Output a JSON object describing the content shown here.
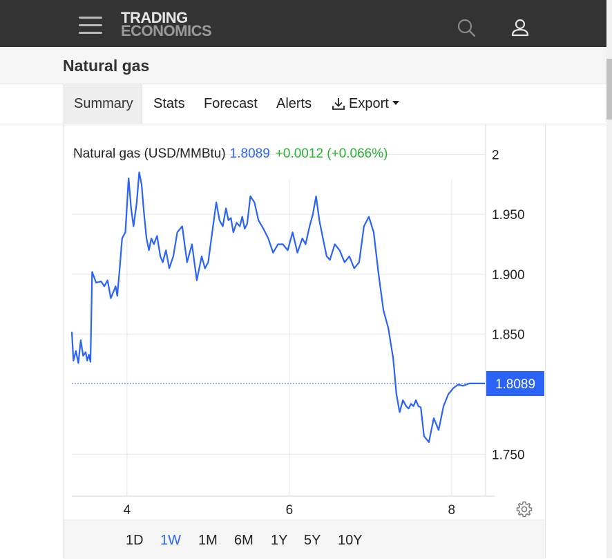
{
  "header": {
    "logo_line1": "TRADING",
    "logo_line2": "ECONOMICS",
    "icons": [
      "menu-icon",
      "search-icon",
      "user-icon"
    ]
  },
  "page": {
    "title": "Natural gas"
  },
  "tabs": [
    {
      "label": "Summary",
      "active": true
    },
    {
      "label": "Stats"
    },
    {
      "label": "Forecast"
    },
    {
      "label": "Alerts"
    },
    {
      "label": "Export",
      "icon": "download-icon",
      "has_dropdown": true
    }
  ],
  "colors": {
    "line": "#2a63f5",
    "positive": "#27b22f",
    "last_price_bg": "#2a63f5",
    "header_bg": "#333333"
  },
  "legend": {
    "name": "Natural gas (USD/MMBtu)",
    "value": "1.8089",
    "change": "+0.0012 (+0.066%)"
  },
  "range_buttons": [
    {
      "label": "1D"
    },
    {
      "label": "1W",
      "active": true
    },
    {
      "label": "1M"
    },
    {
      "label": "6M"
    },
    {
      "label": "1Y"
    },
    {
      "label": "5Y"
    },
    {
      "label": "10Y"
    }
  ],
  "chart_data": {
    "type": "line",
    "ylim": [
      1.715,
      2.025
    ],
    "xlim": [
      3.32,
      8.41
    ],
    "y_ticks": [
      {
        "value": 2.0,
        "label": "2"
      },
      {
        "value": 1.95,
        "label": "1.950"
      },
      {
        "value": 1.9,
        "label": "1.900"
      },
      {
        "value": 1.85,
        "label": "1.850"
      },
      {
        "value": 1.75,
        "label": "1.750"
      }
    ],
    "x_ticks": [
      {
        "value": 4,
        "label": "4"
      },
      {
        "value": 6,
        "label": "6"
      },
      {
        "value": 8,
        "label": "8"
      }
    ],
    "grid": true,
    "last_value": 1.8089,
    "last_label": "1.8089",
    "series": [
      {
        "x": [
          3.32,
          3.34,
          3.37,
          3.4,
          3.43,
          3.46,
          3.49,
          3.51,
          3.53,
          3.55,
          3.57,
          3.62,
          3.68,
          3.72,
          3.76,
          3.8,
          3.86,
          3.88,
          3.91,
          3.94,
          3.98,
          4.02,
          4.05,
          4.08,
          4.12,
          4.15,
          4.18,
          4.21,
          4.24,
          4.27,
          4.3,
          4.33,
          4.37,
          4.41,
          4.44,
          4.48,
          4.52,
          4.57,
          4.62,
          4.68,
          4.74,
          4.8,
          4.86,
          4.92,
          4.96,
          5.0,
          5.05,
          5.1,
          5.14,
          5.18,
          5.22,
          5.25,
          5.28,
          5.31,
          5.35,
          5.39,
          5.42,
          5.45,
          5.48,
          5.52,
          5.57,
          5.62,
          5.68,
          5.74,
          5.8,
          5.86,
          5.92,
          5.98,
          6.04,
          6.1,
          6.16,
          6.2,
          6.25,
          6.29,
          6.33,
          6.37,
          6.42,
          6.46,
          6.5,
          6.56,
          6.62,
          6.68,
          6.74,
          6.8,
          6.86,
          6.92,
          6.98,
          7.04,
          7.1,
          7.16,
          7.22,
          7.28,
          7.32,
          7.36,
          7.4,
          7.44,
          7.47,
          7.5,
          7.53,
          7.56,
          7.59,
          7.62,
          7.66,
          7.72,
          7.78,
          7.84,
          7.9,
          7.96,
          8.02,
          8.08,
          8.14,
          8.18,
          8.22,
          8.26,
          8.3,
          8.34,
          8.38,
          8.41
        ],
        "y": [
          1.852,
          1.828,
          1.836,
          1.826,
          1.845,
          1.832,
          1.835,
          1.828,
          1.833,
          1.827,
          1.902,
          1.893,
          1.894,
          1.89,
          1.895,
          1.88,
          1.89,
          1.882,
          1.905,
          1.93,
          1.935,
          1.98,
          1.955,
          1.94,
          1.96,
          1.985,
          1.975,
          1.95,
          1.93,
          1.92,
          1.93,
          1.925,
          1.932,
          1.915,
          1.91,
          1.92,
          1.905,
          1.915,
          1.935,
          1.94,
          1.91,
          1.925,
          1.895,
          1.915,
          1.905,
          1.91,
          1.935,
          1.96,
          1.945,
          1.94,
          1.955,
          1.945,
          1.947,
          1.935,
          1.943,
          1.94,
          1.948,
          1.938,
          1.942,
          1.965,
          1.96,
          1.945,
          1.938,
          1.93,
          1.918,
          1.925,
          1.925,
          1.92,
          1.935,
          1.918,
          1.93,
          1.925,
          1.94,
          1.95,
          1.965,
          1.945,
          1.928,
          1.915,
          1.912,
          1.925,
          1.92,
          1.91,
          1.915,
          1.905,
          1.91,
          1.94,
          1.948,
          1.935,
          1.9,
          1.87,
          1.855,
          1.83,
          1.8,
          1.785,
          1.795,
          1.79,
          1.788,
          1.792,
          1.79,
          1.795,
          1.79,
          1.789,
          1.765,
          1.76,
          1.78,
          1.77,
          1.79,
          1.8,
          1.805,
          1.808,
          1.807,
          1.808,
          1.809,
          1.809,
          1.809,
          1.809,
          1.809,
          1.8089
        ]
      }
    ]
  }
}
